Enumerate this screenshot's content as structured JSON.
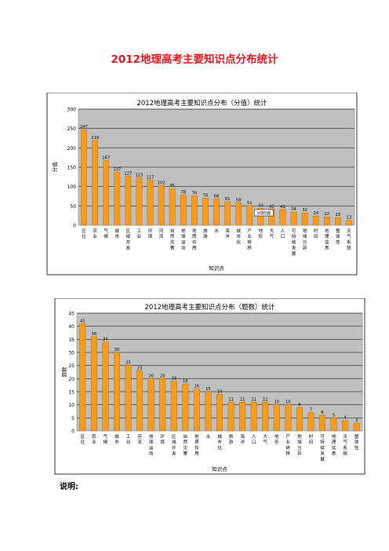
{
  "page": {
    "title": "2012地理高考主要知识点分布统计",
    "note_label": "说明:"
  },
  "colors": {
    "bar_fill": "#f79b1d",
    "bar_stroke": "#a4620c",
    "plot_bg": "#c0c0c0",
    "title_red": "#e8131d"
  },
  "chart_data": [
    {
      "type": "bar",
      "title": "2012地理高考主要知识点分布（分值）统计",
      "xlabel": "知识点",
      "ylabel": "分值",
      "ylim": [
        0,
        300
      ],
      "yticks": [
        0,
        50,
        100,
        150,
        200,
        250,
        300
      ],
      "grid": true,
      "categories": [
        "区位",
        "农业",
        "气候",
        "城市",
        "区域开发",
        "工业",
        "环境",
        "河流",
        "自然灾害",
        "地球运动",
        "地质作用",
        "旅游",
        "水",
        "海洋",
        "城市化",
        "产业转移",
        "地形",
        "大气",
        "人口",
        "可持续发展",
        "地域分异",
        "时间",
        "地理信息",
        "整体性",
        "天气系统"
      ],
      "values": [
        247,
        219,
        167,
        137,
        127,
        123,
        117,
        102,
        95,
        78,
        76,
        70,
        68,
        61,
        58,
        51,
        44,
        42,
        41,
        34,
        32,
        24,
        22,
        20,
        13
      ],
      "callout": "分值的图"
    },
    {
      "type": "bar",
      "title": "2012地理高考主要知识点分布（题数）统计",
      "xlabel": "知识点",
      "ylabel": "题数",
      "ylim": [
        0,
        45
      ],
      "yticks": [
        0,
        5,
        10,
        15,
        20,
        25,
        30,
        35,
        40,
        45
      ],
      "grid": true,
      "categories": [
        "区位",
        "农业",
        "气候",
        "城市",
        "工业",
        "河流",
        "地球运动",
        "环境",
        "区域开发",
        "自然灾害",
        "地质作用",
        "水",
        "城市化",
        "旅游",
        "海洋",
        "人口",
        "大气",
        "地形",
        "产业转移",
        "地域分异",
        "时间",
        "可持续发展",
        "地理信息",
        "天气系统",
        "整体性"
      ],
      "values": [
        41,
        36,
        34,
        30,
        25,
        23,
        20,
        20,
        19,
        18,
        16,
        15,
        14,
        11,
        11,
        11,
        11,
        10,
        10,
        9,
        7,
        6,
        5,
        4,
        3
      ]
    }
  ]
}
